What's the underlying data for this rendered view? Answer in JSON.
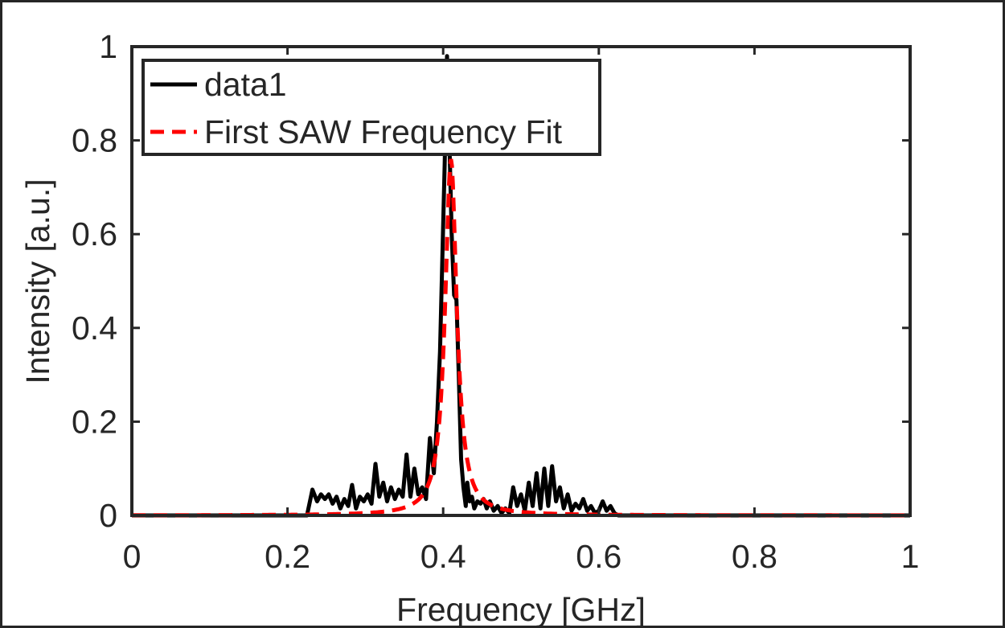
{
  "chart_data": {
    "type": "line",
    "xlabel": "Frequency [GHz]",
    "ylabel": "Intensity [a.u.]",
    "xlim": [
      0,
      1
    ],
    "ylim": [
      0,
      1
    ],
    "xticks": [
      0,
      0.2,
      0.4,
      0.6,
      0.8,
      1
    ],
    "xtick_labels": [
      "0",
      "0.2",
      "0.4",
      "0.6",
      "0.8",
      "1"
    ],
    "yticks": [
      0,
      0.2,
      0.4,
      0.6,
      0.8,
      1
    ],
    "ytick_labels": [
      "0",
      "0.2",
      "0.4",
      "0.6",
      "0.8",
      "1"
    ],
    "grid": false,
    "legend_position": "top-left",
    "series": [
      {
        "name": "data1",
        "color": "#000000",
        "style": "solid",
        "x": [
          0,
          0.225,
          0.232,
          0.238,
          0.243,
          0.248,
          0.253,
          0.258,
          0.263,
          0.268,
          0.273,
          0.278,
          0.283,
          0.288,
          0.293,
          0.298,
          0.303,
          0.308,
          0.313,
          0.318,
          0.323,
          0.328,
          0.333,
          0.338,
          0.343,
          0.348,
          0.353,
          0.358,
          0.363,
          0.368,
          0.373,
          0.378,
          0.383,
          0.388,
          0.392,
          0.396,
          0.399,
          0.402,
          0.405,
          0.408,
          0.411,
          0.414,
          0.417,
          0.42,
          0.423,
          0.426,
          0.429,
          0.431,
          0.434,
          0.437,
          0.44,
          0.444,
          0.448,
          0.452,
          0.456,
          0.46,
          0.465,
          0.47,
          0.475,
          0.48,
          0.485,
          0.49,
          0.495,
          0.5,
          0.505,
          0.51,
          0.515,
          0.52,
          0.525,
          0.53,
          0.535,
          0.54,
          0.545,
          0.55,
          0.555,
          0.56,
          0.565,
          0.57,
          0.575,
          0.58,
          0.585,
          0.59,
          0.595,
          0.6,
          0.605,
          0.61,
          0.615,
          0.62,
          0.625,
          0.63,
          0.64,
          1
        ],
        "y": [
          0,
          0,
          0.055,
          0.03,
          0.045,
          0.035,
          0.045,
          0.025,
          0.04,
          0.015,
          0.035,
          0.02,
          0.065,
          0.015,
          0.04,
          0.03,
          0.045,
          0.025,
          0.11,
          0.04,
          0.07,
          0.03,
          0.06,
          0.035,
          0.055,
          0.04,
          0.13,
          0.04,
          0.1,
          0.045,
          0.06,
          0.035,
          0.165,
          0.09,
          0.2,
          0.35,
          0.55,
          0.75,
          0.98,
          0.8,
          0.6,
          0.47,
          0.46,
          0.3,
          0.12,
          0.06,
          0.02,
          0.07,
          0.03,
          0.04,
          0.015,
          0.03,
          0.025,
          0.035,
          0.015,
          0.03,
          0.01,
          0.02,
          0.005,
          0.015,
          0.005,
          0.06,
          0.02,
          0.045,
          0.01,
          0.07,
          0.02,
          0.09,
          0.015,
          0.1,
          0.02,
          0.105,
          0.03,
          0.06,
          0.015,
          0.045,
          0.01,
          0.025,
          0.015,
          0.035,
          0.01,
          0.02,
          0.005,
          0.01,
          0.03,
          0.01,
          0.02,
          0.005,
          0.0,
          0.0,
          0.0,
          0.0
        ]
      },
      {
        "name": "First SAW Frequency Fit",
        "color": "#ff0000",
        "style": "dashed",
        "model": "lorentzian",
        "x0": 0.41,
        "gamma": 0.009,
        "amplitude": 0.76,
        "x": [
          0,
          1
        ]
      }
    ]
  }
}
